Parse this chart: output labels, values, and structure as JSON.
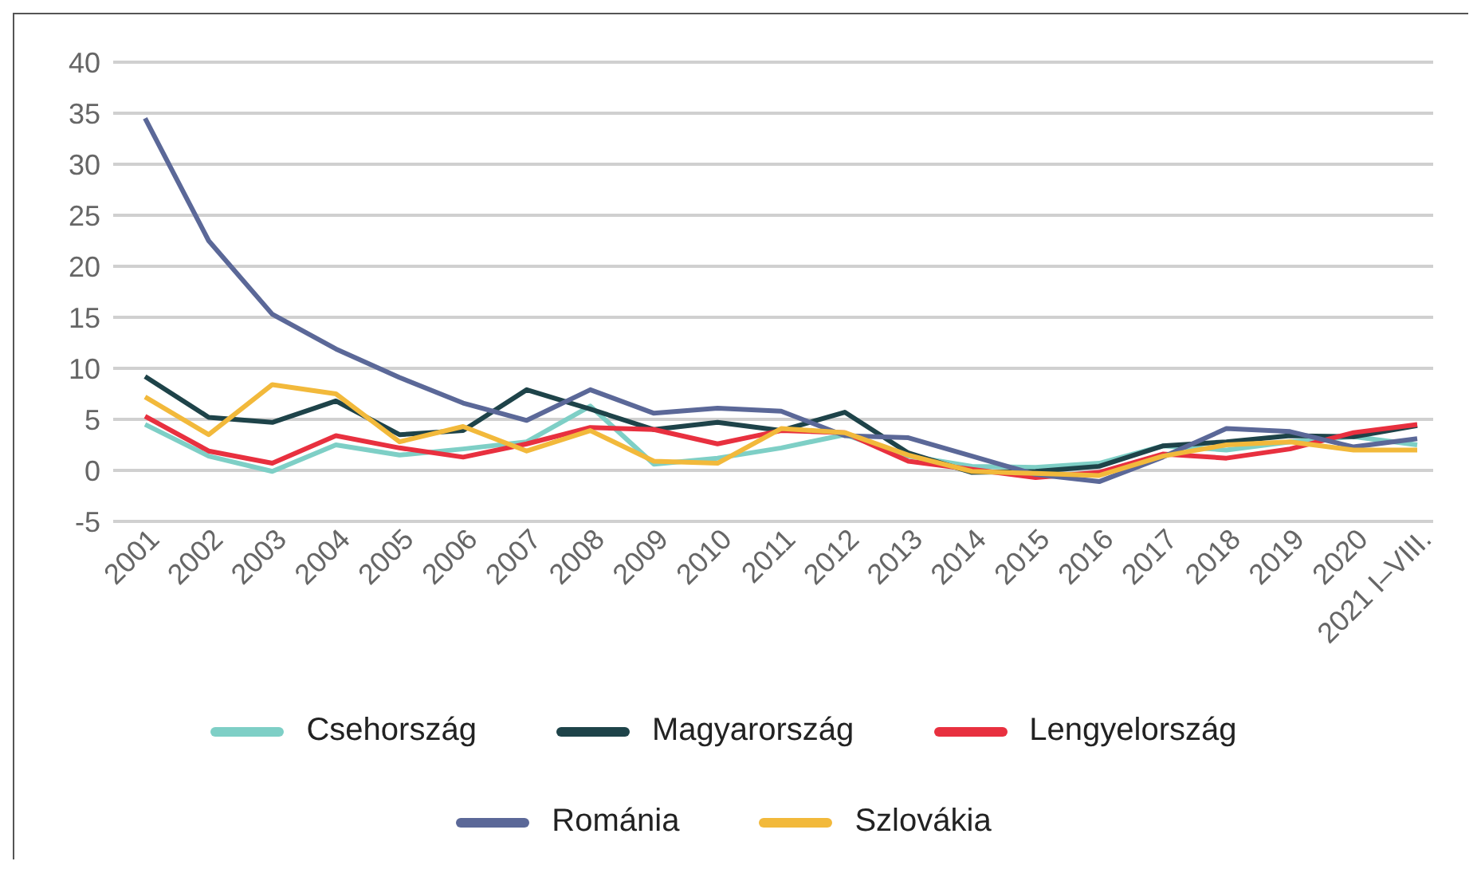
{
  "chart_data": {
    "type": "line",
    "categories": [
      "2001",
      "2002",
      "2003",
      "2004",
      "2005",
      "2006",
      "2007",
      "2008",
      "2009",
      "2010",
      "2011",
      "2012",
      "2013",
      "2014",
      "2015",
      "2016",
      "2017",
      "2018",
      "2019",
      "2020",
      "2021 I–VIII."
    ],
    "series": [
      {
        "name": "Csehország",
        "color": "#7ecfc6",
        "values": [
          4.5,
          1.4,
          -0.1,
          2.5,
          1.5,
          2.1,
          2.8,
          6.3,
          0.6,
          1.2,
          2.2,
          3.5,
          1.4,
          0.4,
          0.3,
          0.7,
          2.4,
          2.0,
          2.8,
          3.3,
          2.5
        ]
      },
      {
        "name": "Magyarország",
        "color": "#1e4349",
        "values": [
          9.2,
          5.2,
          4.7,
          6.8,
          3.5,
          3.9,
          7.9,
          6.0,
          4.0,
          4.7,
          3.9,
          5.7,
          1.7,
          -0.2,
          -0.1,
          0.4,
          2.4,
          2.8,
          3.4,
          3.3,
          4.4
        ]
      },
      {
        "name": "Lengyelország",
        "color": "#e8303f",
        "values": [
          5.3,
          1.9,
          0.7,
          3.4,
          2.2,
          1.3,
          2.6,
          4.2,
          4.0,
          2.6,
          3.9,
          3.7,
          0.9,
          0.1,
          -0.7,
          -0.2,
          1.6,
          1.2,
          2.1,
          3.7,
          4.5
        ]
      },
      {
        "name": "Románia",
        "color": "#5b6898",
        "values": [
          34.5,
          22.5,
          15.3,
          11.9,
          9.1,
          6.6,
          4.9,
          7.9,
          5.6,
          6.1,
          5.8,
          3.4,
          3.2,
          1.4,
          -0.4,
          -1.1,
          1.3,
          4.1,
          3.8,
          2.3,
          3.1
        ]
      },
      {
        "name": "Szlovákia",
        "color": "#f2b93b",
        "values": [
          7.2,
          3.5,
          8.4,
          7.5,
          2.8,
          4.3,
          1.9,
          3.9,
          0.9,
          0.7,
          4.1,
          3.7,
          1.5,
          -0.1,
          -0.3,
          -0.5,
          1.4,
          2.5,
          2.8,
          2.0,
          2.0
        ]
      }
    ],
    "ylim": [
      -5,
      40
    ],
    "yticks": [
      -5,
      0,
      5,
      10,
      15,
      20,
      25,
      30,
      35,
      40
    ],
    "grid": "y",
    "legend": "bottom",
    "marker": "none",
    "line_style": "solid"
  }
}
